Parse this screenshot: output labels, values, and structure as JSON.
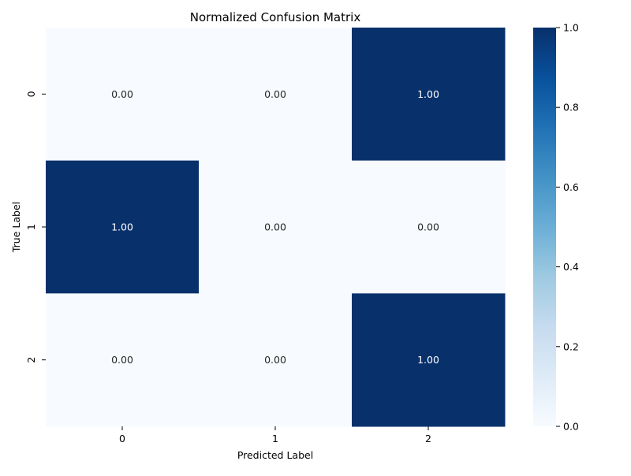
{
  "chart_data": {
    "type": "heatmap",
    "title": "Normalized Confusion Matrix",
    "xlabel": "Predicted Label",
    "ylabel": "True Label",
    "x_categories": [
      "0",
      "1",
      "2"
    ],
    "y_categories": [
      "0",
      "1",
      "2"
    ],
    "values": [
      [
        0.0,
        0.0,
        1.0
      ],
      [
        1.0,
        0.0,
        0.0
      ],
      [
        0.0,
        0.0,
        1.0
      ]
    ],
    "annotation_labels": [
      [
        "0.00",
        "0.00",
        "1.00"
      ],
      [
        "1.00",
        "0.00",
        "0.00"
      ],
      [
        "0.00",
        "0.00",
        "1.00"
      ]
    ],
    "colormap": "Blues",
    "color_low": "#f7fbff",
    "color_high": "#08306b",
    "colorbar": {
      "range": [
        0.0,
        1.0
      ],
      "ticks": [
        0.0,
        0.2,
        0.4,
        0.6,
        0.8,
        1.0
      ],
      "tick_labels": [
        "0.0",
        "0.2",
        "0.4",
        "0.6",
        "0.8",
        "1.0"
      ]
    },
    "grid": false
  }
}
